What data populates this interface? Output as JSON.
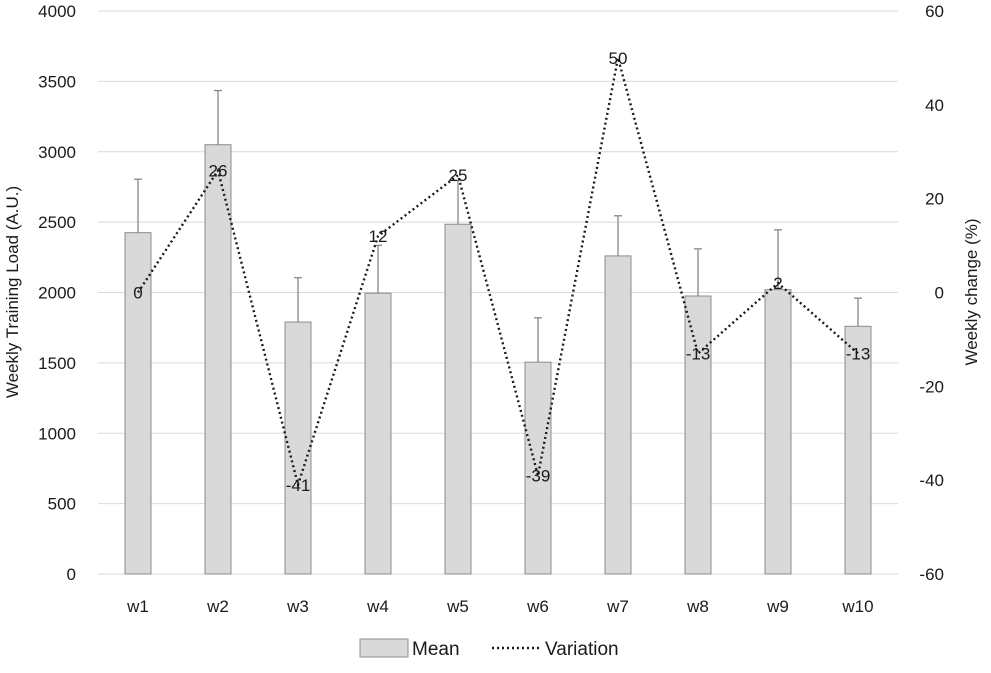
{
  "chart_data": {
    "type": "bar",
    "categories": [
      "w1",
      "w2",
      "w3",
      "w4",
      "w5",
      "w6",
      "w7",
      "w8",
      "w9",
      "w10"
    ],
    "series": [
      {
        "name": "Mean",
        "type": "bar",
        "axis": "left",
        "values": [
          2425,
          3050,
          1790,
          1995,
          2485,
          1505,
          2260,
          1975,
          2020,
          1760
        ],
        "error_plus": [
          380,
          385,
          315,
          340,
          310,
          315,
          285,
          335,
          425,
          200
        ]
      },
      {
        "name": "Variation",
        "type": "line",
        "axis": "right",
        "values": [
          0,
          26,
          -41,
          12,
          25,
          -39,
          50,
          -13,
          2,
          -13
        ],
        "labels": [
          "0",
          "26",
          "-41",
          "12",
          "25",
          "-39",
          "50",
          "-13",
          "2",
          "-13"
        ]
      }
    ],
    "ylabel": "Weekly Training Load (A.U.)",
    "y2label": "Weekly change (%)",
    "xlabel": "",
    "ylim": [
      0,
      4000
    ],
    "y2lim": [
      -60,
      60
    ],
    "yticks": [
      "0",
      "500",
      "1000",
      "1500",
      "2000",
      "2500",
      "3000",
      "3500",
      "4000"
    ],
    "y2ticks": [
      "-60",
      "-40",
      "-20",
      "0",
      "20",
      "40",
      "60"
    ],
    "grid": true,
    "legend": {
      "position": "bottom",
      "entries": [
        "Mean",
        "Variation"
      ]
    },
    "colors": {
      "bar_fill": "#d9d9d9",
      "bar_stroke": "#8c8c8c",
      "line": "#1a1a1a",
      "grid": "#d9d9d9"
    }
  }
}
